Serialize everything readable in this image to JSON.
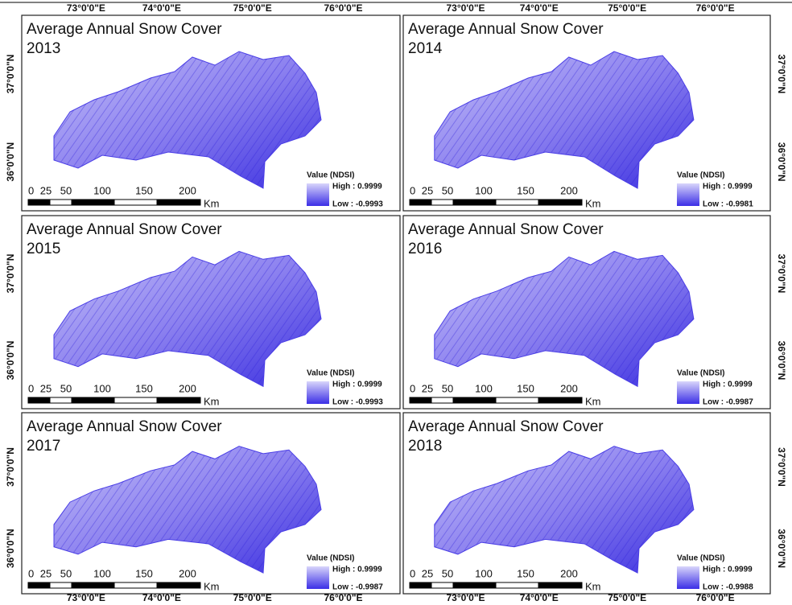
{
  "longitude_labels": [
    "73°0'0\"E",
    "74°0'0\"E",
    "75°0'0\"E",
    "76°0'0\"E"
  ],
  "latitude_labels": [
    "37°0'0\"N",
    "36°0'0\"N"
  ],
  "panels": [
    {
      "title": "Average Annual Snow Cover",
      "year": "2013",
      "legend": {
        "title": "Value (NDSI)",
        "high": "High : 0.9999",
        "low": "Low : -0.9993"
      },
      "scale": {
        "ticks": [
          "0",
          "25",
          "50",
          "100",
          "150",
          "200"
        ],
        "unit": "Km"
      }
    },
    {
      "title": "Average Annual Snow Cover",
      "year": "2014",
      "legend": {
        "title": "Value (NDSI)",
        "high": "High : 0.9999",
        "low": "Low : -0.9981"
      },
      "scale": {
        "ticks": [
          "0",
          "25",
          "50",
          "100",
          "150",
          "200"
        ],
        "unit": "Km"
      }
    },
    {
      "title": "Average Annual Snow Cover",
      "year": "2015",
      "legend": {
        "title": "Value (NDSI)",
        "high": "High : 0.9999",
        "low": "Low : -0.9993"
      },
      "scale": {
        "ticks": [
          "0",
          "25",
          "50",
          "100",
          "150",
          "200"
        ],
        "unit": "Km"
      }
    },
    {
      "title": "Average Annual Snow Cover",
      "year": "2016",
      "legend": {
        "title": "Value (NDSI)",
        "high": "High : 0.9999",
        "low": "Low : -0.9987"
      },
      "scale": {
        "ticks": [
          "0",
          "25",
          "50",
          "100",
          "150",
          "200"
        ],
        "unit": "Km"
      }
    },
    {
      "title": "Average Annual Snow Cover",
      "year": "2017",
      "legend": {
        "title": "Value (NDSI)",
        "high": "High : 0.9999",
        "low": "Low : -0.9987"
      },
      "scale": {
        "ticks": [
          "0",
          "25",
          "50",
          "100",
          "150",
          "200"
        ],
        "unit": "Km"
      }
    },
    {
      "title": "Average Annual Snow Cover",
      "year": "2018",
      "legend": {
        "title": "Value (NDSI)",
        "high": "High : 0.9999",
        "low": "Low : -0.9988"
      },
      "scale": {
        "ticks": [
          "0",
          "25",
          "50",
          "100",
          "150",
          "200"
        ],
        "unit": "Km"
      }
    }
  ]
}
